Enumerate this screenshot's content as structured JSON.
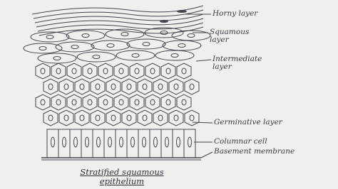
{
  "title": "Stratified squamous epithelium",
  "labels": [
    "Horny layer",
    "Squamous layer",
    "Intermediate layer",
    "Germinative layer",
    "Columnar cell",
    "Basement membrane"
  ]
}
